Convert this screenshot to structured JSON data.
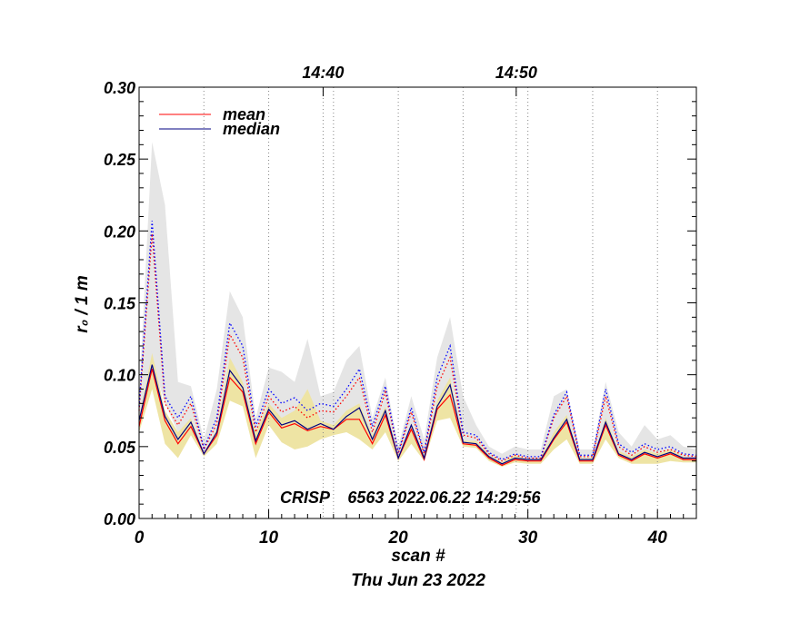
{
  "chart_data": {
    "type": "line",
    "ylabel": "r₀ / 1 m",
    "xlabel": "scan #",
    "date_label": "Thu Jun 23 2022",
    "annotation": "CRISP    6563 2022.06.22 14:29:56",
    "xlim": [
      0,
      43
    ],
    "ylim": [
      0,
      0.3
    ],
    "x_ticks": [
      0,
      10,
      20,
      30,
      40
    ],
    "y_ticks": [
      0.0,
      0.05,
      0.1,
      0.15,
      0.2,
      0.25,
      0.3
    ],
    "y_tick_labels": [
      "0.00",
      "0.05",
      "0.10",
      "0.15",
      "0.20",
      "0.25",
      "0.30"
    ],
    "top_ticks": [
      {
        "label": "14:40",
        "x": 14.2
      },
      {
        "label": "14:50",
        "x": 29.1
      }
    ],
    "vlines": [
      5,
      10,
      15,
      20,
      25,
      30,
      35,
      40
    ],
    "legend": [
      {
        "label": "mean",
        "color": "#ff0000"
      },
      {
        "label": "median",
        "color": "#000080"
      }
    ],
    "x": [
      0,
      1,
      2,
      3,
      4,
      5,
      6,
      7,
      8,
      9,
      10,
      11,
      12,
      13,
      14,
      15,
      16,
      17,
      18,
      19,
      20,
      21,
      22,
      23,
      24,
      25,
      26,
      27,
      28,
      29,
      30,
      31,
      32,
      33,
      34,
      35,
      36,
      37,
      38,
      39,
      40,
      41,
      42,
      43
    ],
    "series": [
      {
        "name": "mean",
        "style": "solid",
        "color": "#ff0000",
        "values": [
          0.064,
          0.104,
          0.068,
          0.052,
          0.064,
          0.045,
          0.058,
          0.098,
          0.088,
          0.052,
          0.074,
          0.063,
          0.066,
          0.061,
          0.064,
          0.062,
          0.069,
          0.069,
          0.052,
          0.072,
          0.042,
          0.062,
          0.041,
          0.076,
          0.086,
          0.052,
          0.051,
          0.042,
          0.037,
          0.041,
          0.04,
          0.04,
          0.055,
          0.067,
          0.04,
          0.04,
          0.065,
          0.044,
          0.04,
          0.045,
          0.042,
          0.045,
          0.041,
          0.041
        ]
      },
      {
        "name": "median",
        "style": "solid",
        "color": "#000080",
        "values": [
          0.068,
          0.107,
          0.071,
          0.055,
          0.067,
          0.045,
          0.06,
          0.103,
          0.091,
          0.054,
          0.076,
          0.065,
          0.068,
          0.062,
          0.066,
          0.062,
          0.071,
          0.077,
          0.055,
          0.075,
          0.042,
          0.065,
          0.042,
          0.078,
          0.093,
          0.053,
          0.052,
          0.043,
          0.038,
          0.042,
          0.041,
          0.041,
          0.056,
          0.069,
          0.041,
          0.041,
          0.067,
          0.045,
          0.041,
          0.046,
          0.043,
          0.046,
          0.042,
          0.042
        ]
      },
      {
        "name": "mean_upper",
        "style": "dotted",
        "color": "#ff0000",
        "values": [
          0.075,
          0.198,
          0.08,
          0.065,
          0.08,
          0.048,
          0.066,
          0.128,
          0.112,
          0.06,
          0.085,
          0.074,
          0.078,
          0.07,
          0.075,
          0.074,
          0.085,
          0.098,
          0.06,
          0.088,
          0.045,
          0.074,
          0.045,
          0.092,
          0.112,
          0.058,
          0.056,
          0.045,
          0.04,
          0.044,
          0.042,
          0.042,
          0.07,
          0.085,
          0.043,
          0.043,
          0.085,
          0.05,
          0.044,
          0.05,
          0.046,
          0.048,
          0.044,
          0.043
        ]
      },
      {
        "name": "median_upper",
        "style": "dotted",
        "color": "#0000ff",
        "values": [
          0.078,
          0.207,
          0.085,
          0.07,
          0.085,
          0.049,
          0.07,
          0.136,
          0.12,
          0.064,
          0.09,
          0.08,
          0.084,
          0.075,
          0.08,
          0.078,
          0.09,
          0.104,
          0.064,
          0.092,
          0.046,
          0.077,
          0.046,
          0.098,
          0.12,
          0.06,
          0.058,
          0.046,
          0.041,
          0.045,
          0.043,
          0.043,
          0.072,
          0.088,
          0.044,
          0.044,
          0.09,
          0.052,
          0.046,
          0.052,
          0.048,
          0.05,
          0.045,
          0.044
        ]
      }
    ],
    "bands": [
      {
        "name": "grey-envelope",
        "color": "#e5e5e5",
        "upper": [
          0.085,
          0.262,
          0.218,
          0.095,
          0.092,
          0.055,
          0.09,
          0.158,
          0.14,
          0.07,
          0.105,
          0.102,
          0.095,
          0.125,
          0.085,
          0.088,
          0.11,
          0.12,
          0.07,
          0.098,
          0.05,
          0.085,
          0.055,
          0.112,
          0.14,
          0.085,
          0.065,
          0.05,
          0.045,
          0.05,
          0.048,
          0.048,
          0.085,
          0.09,
          0.048,
          0.048,
          0.095,
          0.06,
          0.05,
          0.065,
          0.055,
          0.058,
          0.05,
          0.048
        ],
        "lower": [
          0.07,
          0.11,
          0.08,
          0.06,
          0.07,
          0.046,
          0.06,
          0.11,
          0.095,
          0.055,
          0.078,
          0.068,
          0.07,
          0.064,
          0.068,
          0.065,
          0.074,
          0.08,
          0.056,
          0.078,
          0.043,
          0.066,
          0.043,
          0.08,
          0.095,
          0.054,
          0.053,
          0.044,
          0.039,
          0.043,
          0.041,
          0.041,
          0.058,
          0.07,
          0.042,
          0.042,
          0.068,
          0.046,
          0.042,
          0.047,
          0.044,
          0.047,
          0.043,
          0.042
        ]
      },
      {
        "name": "yellow-band",
        "color": "#eee4a4",
        "upper": [
          0.07,
          0.115,
          0.075,
          0.06,
          0.07,
          0.046,
          0.062,
          0.112,
          0.095,
          0.06,
          0.08,
          0.07,
          0.075,
          0.09,
          0.068,
          0.065,
          0.075,
          0.08,
          0.058,
          0.078,
          0.043,
          0.066,
          0.044,
          0.082,
          0.098,
          0.054,
          0.054,
          0.044,
          0.039,
          0.044,
          0.041,
          0.042,
          0.06,
          0.072,
          0.042,
          0.042,
          0.07,
          0.047,
          0.043,
          0.048,
          0.045,
          0.048,
          0.043,
          0.042
        ],
        "lower": [
          0.06,
          0.09,
          0.052,
          0.042,
          0.058,
          0.043,
          0.052,
          0.082,
          0.078,
          0.042,
          0.065,
          0.053,
          0.048,
          0.05,
          0.055,
          0.058,
          0.06,
          0.055,
          0.048,
          0.06,
          0.04,
          0.052,
          0.04,
          0.068,
          0.07,
          0.05,
          0.049,
          0.04,
          0.036,
          0.039,
          0.038,
          0.038,
          0.048,
          0.055,
          0.038,
          0.038,
          0.055,
          0.042,
          0.038,
          0.038,
          0.038,
          0.04,
          0.039,
          0.039
        ]
      }
    ]
  }
}
